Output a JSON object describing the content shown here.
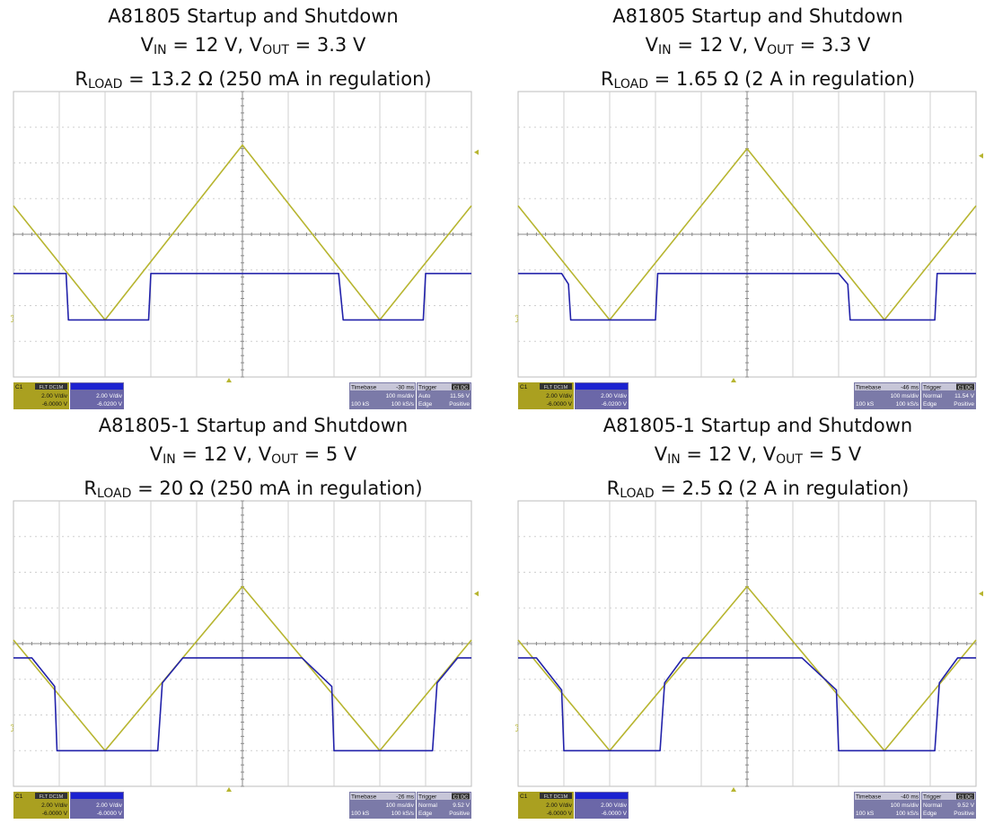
{
  "colors": {
    "ch1": "#b7b530",
    "ch2": "#2222aa",
    "grid": "#cfcfcf",
    "chbox1": "#aaa020",
    "chbox2": "#6b67a8",
    "tbbox": "#7b7aa8"
  },
  "panels": [
    {
      "title": {
        "line1": "A81805 Startup and Shutdown",
        "vin_lbl": "V",
        "vin_sub": "IN",
        "vin_val": " = 12 V, ",
        "vout_lbl": "V",
        "vout_sub": "OUT",
        "vout_val": " = 3.3 V",
        "r_lbl": "R",
        "r_sub": "LOAD",
        "r_val": " = 13.2 Ω (250 mA in regulation)"
      },
      "chart_data": {
        "type": "line",
        "x_unit": "div",
        "xlim": [
          0,
          10
        ],
        "ylim": [
          -4,
          4
        ],
        "series": [
          {
            "color": "#b7b530",
            "x": [
              0,
              2,
              5,
              8,
              10
            ],
            "y": [
              0.8,
              -2.4,
              2.5,
              -2.4,
              0.8
            ]
          },
          {
            "color": "#2222aa",
            "x": [
              0,
              1.15,
              1.2,
              2.95,
              3.0,
              7.1,
              7.2,
              8.95,
              9.0,
              10
            ],
            "y": [
              -1.1,
              -1.1,
              -2.4,
              -2.4,
              -1.1,
              -1.1,
              -2.4,
              -2.4,
              -1.1,
              -1.1
            ]
          }
        ]
      },
      "ch1": {
        "label": "C1",
        "tags": "FLT DC1M",
        "vdiv": "2.00 V/div",
        "offset": "-6.0000 V"
      },
      "ch2": {
        "vdiv": "2.00 V/div",
        "offset": "-6.0200 V"
      },
      "timebase": {
        "label": "Timebase",
        "delay": "-30 ms",
        "tdiv": "100 ms/div",
        "samples": "100 kS",
        "rate": "100 kS/s"
      },
      "trigger": {
        "label": "Trigger",
        "src": "C1 DC",
        "mode": "Auto",
        "level": "11.56 V",
        "type": "Edge",
        "slope": "Positive"
      },
      "marker": "C3"
    },
    {
      "title": {
        "line1": "A81805 Startup and Shutdown",
        "vin_lbl": "V",
        "vin_sub": "IN",
        "vin_val": " = 12 V, ",
        "vout_lbl": "V",
        "vout_sub": "OUT",
        "vout_val": " = 3.3 V",
        "r_lbl": "R",
        "r_sub": "LOAD",
        "r_val": " = 1.65 Ω (2 A in regulation)"
      },
      "chart_data": {
        "type": "line",
        "x_unit": "div",
        "xlim": [
          0,
          10
        ],
        "ylim": [
          -4,
          4
        ],
        "series": [
          {
            "color": "#b7b530",
            "x": [
              0,
              2,
              5,
              8,
              10
            ],
            "y": [
              0.8,
              -2.4,
              2.4,
              -2.4,
              0.8
            ]
          },
          {
            "color": "#2222aa",
            "x": [
              0,
              0.95,
              1.1,
              1.15,
              3.0,
              3.05,
              7.0,
              7.2,
              7.25,
              9.1,
              9.15,
              10
            ],
            "y": [
              -1.1,
              -1.1,
              -1.4,
              -2.4,
              -2.4,
              -1.1,
              -1.1,
              -1.4,
              -2.4,
              -2.4,
              -1.1,
              -1.1
            ]
          }
        ]
      },
      "ch1": {
        "label": "C1",
        "tags": "FLT DC1M",
        "vdiv": "2.00 V/div",
        "offset": "-6.0000 V"
      },
      "ch2": {
        "vdiv": "2.00 V/div",
        "offset": "-6.0200 V"
      },
      "timebase": {
        "label": "Timebase",
        "delay": "-46 ms",
        "tdiv": "100 ms/div",
        "samples": "100 kS",
        "rate": "100 kS/s"
      },
      "trigger": {
        "label": "Trigger",
        "src": "C1 DC",
        "mode": "Normal",
        "level": "11.54 V",
        "type": "Edge",
        "slope": "Positive"
      },
      "marker": "C3"
    },
    {
      "title": {
        "line1": "A81805-1 Startup and Shutdown",
        "vin_lbl": "V",
        "vin_sub": "IN",
        "vin_val": " = 12 V, ",
        "vout_lbl": "V",
        "vout_sub": "OUT",
        "vout_val": " = 5 V",
        "r_lbl": "R",
        "r_sub": "LOAD",
        "r_val": " = 20 Ω (250 mA in regulation)"
      },
      "chart_data": {
        "type": "line",
        "x_unit": "div",
        "xlim": [
          0,
          10
        ],
        "ylim": [
          -4,
          4
        ],
        "series": [
          {
            "color": "#b7b530",
            "x": [
              0,
              2,
              5,
              8,
              10
            ],
            "y": [
              0.1,
              -3.0,
              1.6,
              -3.0,
              0.1
            ]
          },
          {
            "color": "#2222aa",
            "x": [
              0,
              0.4,
              0.9,
              0.95,
              3.15,
              3.25,
              3.7,
              6.3,
              6.95,
              7.0,
              9.15,
              9.25,
              9.7,
              10
            ],
            "y": [
              -0.4,
              -0.4,
              -1.2,
              -3.0,
              -3.0,
              -1.1,
              -0.4,
              -0.4,
              -1.2,
              -3.0,
              -3.0,
              -1.1,
              -0.4,
              -0.4
            ]
          }
        ]
      },
      "ch1": {
        "label": "C1",
        "tags": "FLT DC1M",
        "vdiv": "2.00 V/div",
        "offset": "-6.0000 V"
      },
      "ch2": {
        "vdiv": "2.00 V/div",
        "offset": "-6.0000 V"
      },
      "timebase": {
        "label": "Timebase",
        "delay": "-26 ms",
        "tdiv": "100 ms/div",
        "samples": "100 kS",
        "rate": "100 kS/s"
      },
      "trigger": {
        "label": "Trigger",
        "src": "C1 DC",
        "mode": "Normal",
        "level": "9.52 V",
        "type": "Edge",
        "slope": "Positive"
      },
      "marker": "C3"
    },
    {
      "title": {
        "line1": "A81805-1 Startup and Shutdown",
        "vin_lbl": "V",
        "vin_sub": "IN",
        "vin_val": " = 12 V, ",
        "vout_lbl": "V",
        "vout_sub": "OUT",
        "vout_val": " = 5 V",
        "r_lbl": "R",
        "r_sub": "LOAD",
        "r_val": " = 2.5 Ω (2 A in regulation)"
      },
      "chart_data": {
        "type": "line",
        "x_unit": "div",
        "xlim": [
          0,
          10
        ],
        "ylim": [
          -4,
          4
        ],
        "series": [
          {
            "color": "#b7b530",
            "x": [
              0,
              2,
              5,
              8,
              10
            ],
            "y": [
              0.1,
              -3.0,
              1.6,
              -3.0,
              0.1
            ]
          },
          {
            "color": "#2222aa",
            "x": [
              0,
              0.4,
              0.95,
              1.0,
              3.1,
              3.2,
              3.6,
              6.2,
              6.95,
              7.0,
              9.1,
              9.2,
              9.6,
              10
            ],
            "y": [
              -0.4,
              -0.4,
              -1.3,
              -3.0,
              -3.0,
              -1.1,
              -0.4,
              -0.4,
              -1.3,
              -3.0,
              -3.0,
              -1.1,
              -0.4,
              -0.4
            ]
          }
        ]
      },
      "ch1": {
        "label": "C1",
        "tags": "FLT DC1M",
        "vdiv": "2.00 V/div",
        "offset": "-6.0000 V"
      },
      "ch2": {
        "vdiv": "2.00 V/div",
        "offset": "-6.0000 V"
      },
      "timebase": {
        "label": "Timebase",
        "delay": "-40 ms",
        "tdiv": "100 ms/div",
        "samples": "100 kS",
        "rate": "100 kS/s"
      },
      "trigger": {
        "label": "Trigger",
        "src": "C1 DC",
        "mode": "Normal",
        "level": "9.52 V",
        "type": "Edge",
        "slope": "Positive"
      },
      "marker": "C3"
    }
  ]
}
